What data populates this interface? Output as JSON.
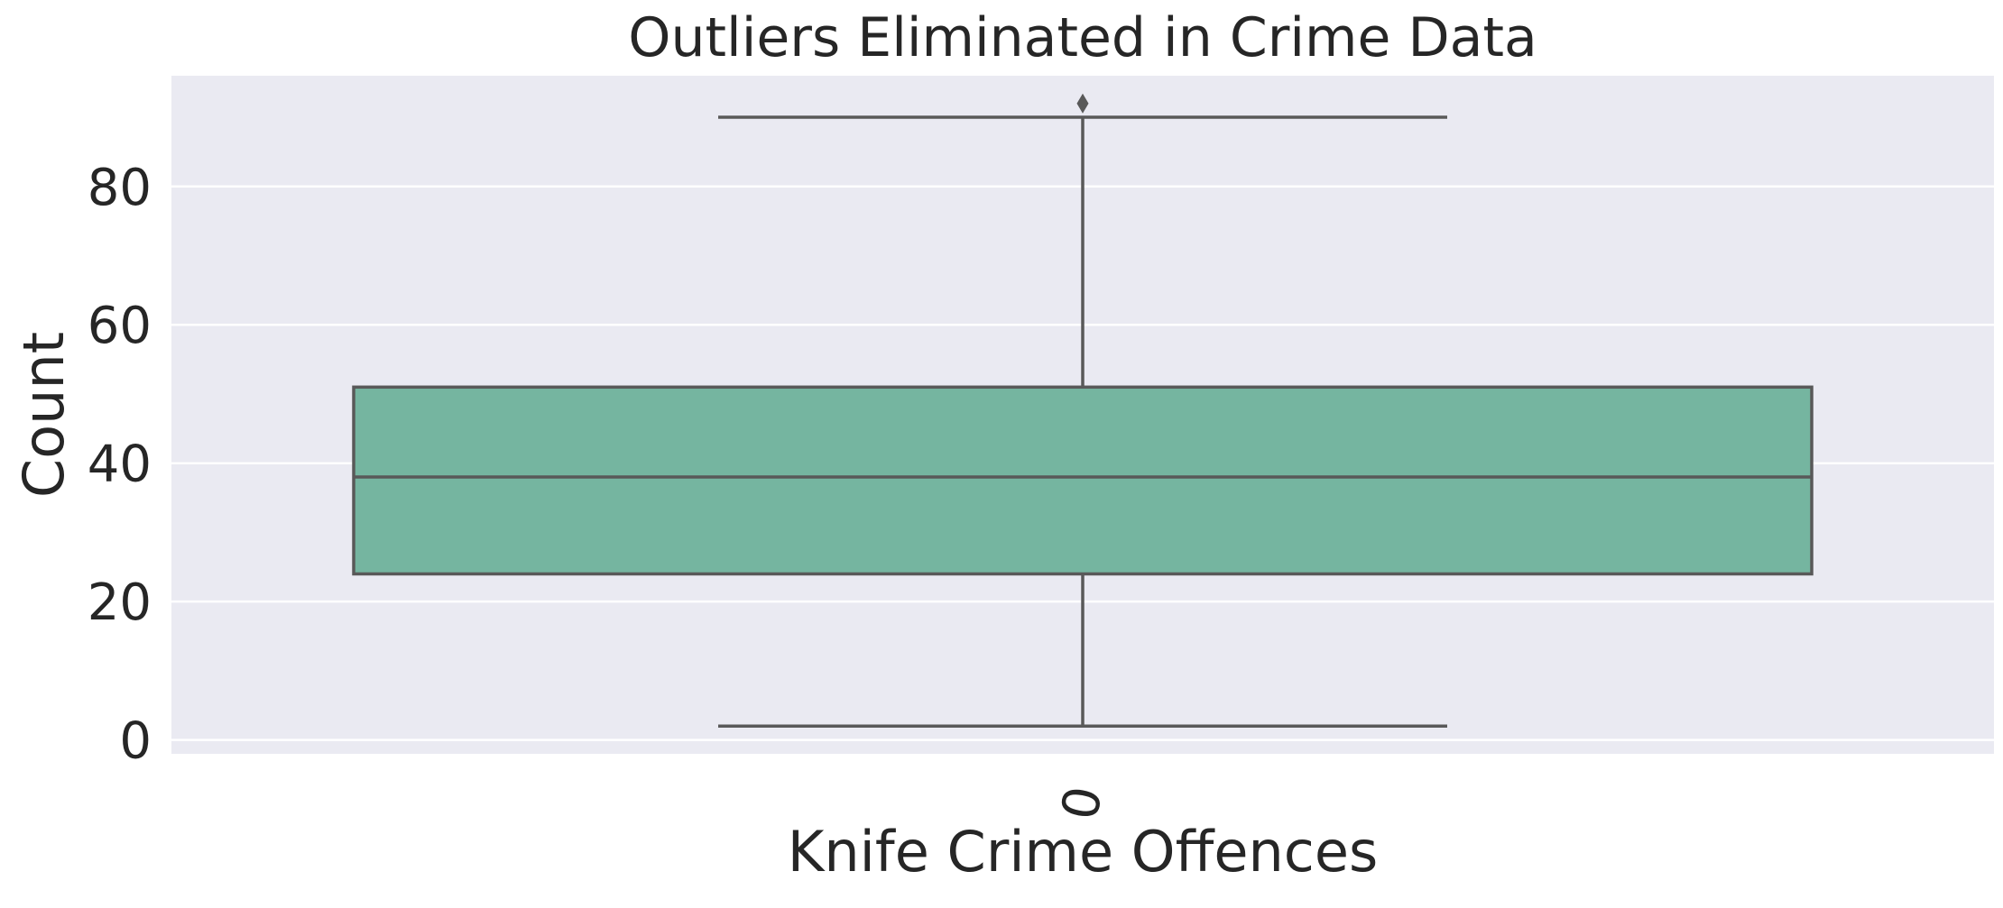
{
  "chart_data": {
    "type": "box",
    "title": "Outliers Eliminated in Crime Data",
    "xlabel": "Knife Crime Offences",
    "ylabel": "Count",
    "categories": [
      "0"
    ],
    "ylim": [
      -2,
      96
    ],
    "yticks": [
      0,
      20,
      40,
      60,
      80
    ],
    "grid": true,
    "boxes": [
      {
        "category": "0",
        "whisker_low": 2,
        "q1": 24,
        "median": 38,
        "q3": 51,
        "whisker_high": 90,
        "outliers": [
          92
        ]
      }
    ],
    "colors": {
      "background": "#eaeaf2",
      "grid": "#ffffff",
      "box_fill": "#75b5a0",
      "line": "#595959",
      "text": "#262626"
    }
  }
}
